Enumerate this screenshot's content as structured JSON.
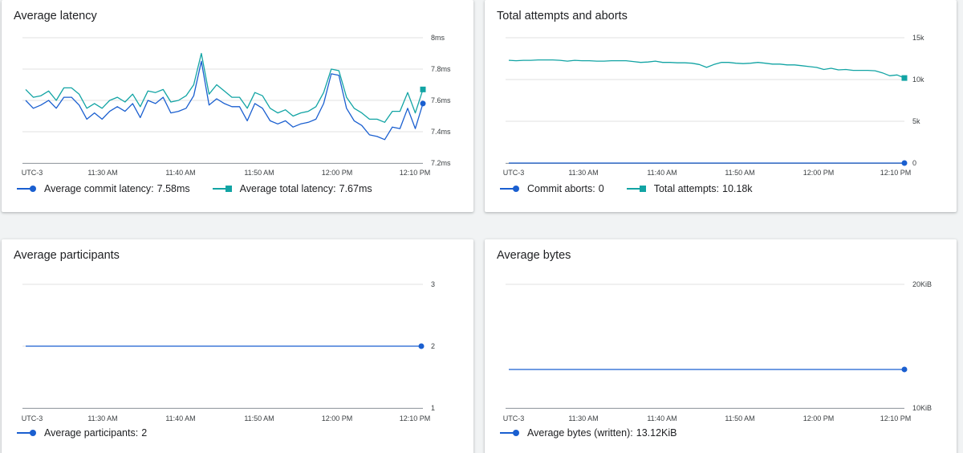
{
  "colors": {
    "commit": "#1a5fd0",
    "teal": "#12a4a4",
    "grid": "#e0e0e0",
    "axis": "#9aa0a6"
  },
  "cards": [
    {
      "id": "latency",
      "title": "Average latency",
      "x_labels": [
        "UTC-3",
        "11:30 AM",
        "11:40 AM",
        "11:50 AM",
        "12:00 PM",
        "12:10 PM"
      ],
      "y_labels": [
        "8ms",
        "7.8ms",
        "7.6ms",
        "7.4ms",
        "7.2ms"
      ],
      "legend": [
        {
          "marker": "circle",
          "color_key": "commit",
          "label": "Average commit latency:",
          "value": "7.58ms"
        },
        {
          "marker": "square",
          "color_key": "teal",
          "label": "Average total latency:",
          "value": "7.67ms"
        }
      ]
    },
    {
      "id": "attempts",
      "title": "Total attempts and aborts",
      "x_labels": [
        "UTC-3",
        "11:30 AM",
        "11:40 AM",
        "11:50 AM",
        "12:00 PM",
        "12:10 PM"
      ],
      "y_labels": [
        "15k",
        "10k",
        "5k",
        "0"
      ],
      "legend": [
        {
          "marker": "circle",
          "color_key": "commit",
          "label": "Commit aborts:",
          "value": "0"
        },
        {
          "marker": "square",
          "color_key": "teal",
          "label": "Total attempts:",
          "value": "10.18k"
        }
      ]
    },
    {
      "id": "participants",
      "title": "Average participants",
      "x_labels": [
        "UTC-3",
        "11:30 AM",
        "11:40 AM",
        "11:50 AM",
        "12:00 PM",
        "12:10 PM"
      ],
      "y_labels": [
        "3",
        "2",
        "1"
      ],
      "legend": [
        {
          "marker": "circle",
          "color_key": "commit",
          "label": "Average participants:",
          "value": "2"
        }
      ]
    },
    {
      "id": "bytes",
      "title": "Average bytes",
      "x_labels": [
        "UTC-3",
        "11:30 AM",
        "11:40 AM",
        "11:50 AM",
        "12:00 PM",
        "12:10 PM"
      ],
      "y_labels": [
        "20KiB",
        "10KiB"
      ],
      "legend": [
        {
          "marker": "circle",
          "color_key": "commit",
          "label": "Average bytes (written):",
          "value": "13.12KiB"
        }
      ]
    }
  ],
  "chart_data": [
    {
      "type": "line",
      "card": "latency",
      "ylim": [
        7.2,
        8.0
      ],
      "series": [
        {
          "name": "Average commit latency",
          "color_key": "commit",
          "marker": "circle",
          "values": [
            7.6,
            7.55,
            7.57,
            7.6,
            7.55,
            7.62,
            7.62,
            7.57,
            7.48,
            7.52,
            7.48,
            7.53,
            7.56,
            7.53,
            7.58,
            7.49,
            7.6,
            7.58,
            7.62,
            7.52,
            7.53,
            7.55,
            7.63,
            7.85,
            7.57,
            7.61,
            7.58,
            7.56,
            7.56,
            7.47,
            7.58,
            7.55,
            7.47,
            7.45,
            7.47,
            7.43,
            7.45,
            7.46,
            7.48,
            7.58,
            7.77,
            7.76,
            7.55,
            7.47,
            7.44,
            7.38,
            7.37,
            7.35,
            7.43,
            7.42,
            7.55,
            7.42,
            7.58
          ]
        },
        {
          "name": "Average total latency",
          "color_key": "teal",
          "marker": "square",
          "values": [
            7.67,
            7.62,
            7.63,
            7.66,
            7.6,
            7.68,
            7.68,
            7.64,
            7.55,
            7.58,
            7.55,
            7.6,
            7.62,
            7.59,
            7.64,
            7.56,
            7.66,
            7.65,
            7.67,
            7.59,
            7.6,
            7.63,
            7.7,
            7.9,
            7.64,
            7.7,
            7.66,
            7.62,
            7.62,
            7.55,
            7.65,
            7.63,
            7.55,
            7.52,
            7.54,
            7.5,
            7.52,
            7.53,
            7.56,
            7.65,
            7.8,
            7.79,
            7.62,
            7.55,
            7.52,
            7.48,
            7.48,
            7.46,
            7.53,
            7.53,
            7.65,
            7.52,
            7.67
          ]
        }
      ]
    },
    {
      "type": "line",
      "card": "attempts",
      "ylim": [
        0,
        15000
      ],
      "series": [
        {
          "name": "Commit aborts",
          "color_key": "commit",
          "marker": "circle",
          "values": [
            0,
            0,
            0,
            0,
            0,
            0,
            0,
            0,
            0,
            0,
            0,
            0,
            0,
            0,
            0,
            0,
            0,
            0,
            0,
            0,
            0,
            0,
            0,
            0,
            0,
            0,
            0,
            0,
            0,
            0,
            0,
            0,
            0,
            0,
            0,
            0,
            0,
            0,
            0,
            0,
            0,
            0,
            0,
            0,
            0,
            0,
            0,
            0,
            0,
            0,
            0,
            0,
            0,
            0,
            0,
            0,
            0,
            0,
            0,
            0
          ]
        },
        {
          "name": "Total attempts",
          "color_key": "teal",
          "marker": "square",
          "values": [
            12300,
            12250,
            12300,
            12300,
            12350,
            12350,
            12350,
            12300,
            12200,
            12300,
            12250,
            12250,
            12200,
            12200,
            12250,
            12250,
            12250,
            12150,
            12050,
            12100,
            12200,
            12050,
            12050,
            12000,
            12000,
            11950,
            11800,
            11450,
            11800,
            12050,
            12050,
            11950,
            11900,
            11950,
            12050,
            11950,
            11850,
            11850,
            11750,
            11750,
            11650,
            11550,
            11450,
            11200,
            11350,
            11150,
            11200,
            11100,
            11100,
            11100,
            11050,
            10800,
            10450,
            10550,
            10180
          ]
        }
      ]
    },
    {
      "type": "line",
      "card": "participants",
      "ylim": [
        1,
        3
      ],
      "series": [
        {
          "name": "Average participants",
          "color_key": "commit",
          "marker": "circle",
          "values": [
            2,
            2,
            2,
            2,
            2,
            2,
            2,
            2,
            2,
            2,
            2,
            2,
            2,
            2,
            2,
            2,
            2,
            2,
            2,
            2
          ]
        }
      ]
    },
    {
      "type": "line",
      "card": "bytes",
      "ylim": [
        10,
        20
      ],
      "series": [
        {
          "name": "Average bytes (written)",
          "color_key": "commit",
          "marker": "circle",
          "values": [
            13.12,
            13.12,
            13.12,
            13.12,
            13.12,
            13.12,
            13.12,
            13.12,
            13.12,
            13.12,
            13.12,
            13.12,
            13.12,
            13.12,
            13.12,
            13.12,
            13.12,
            13.12,
            13.12,
            13.12
          ]
        }
      ]
    }
  ]
}
